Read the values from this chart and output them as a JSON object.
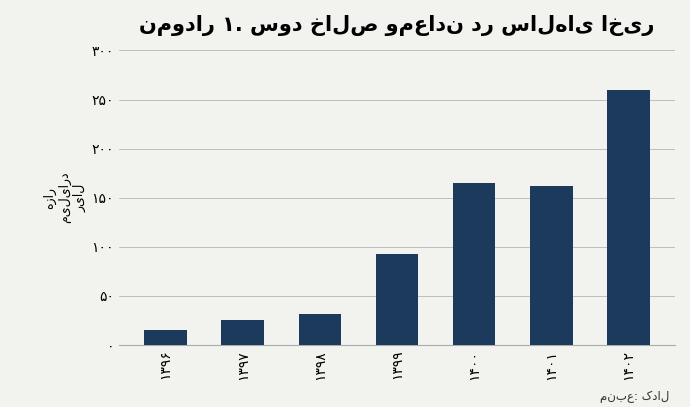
{
  "title": "نمودار ۱. سود خالص ومعادن در سال‌های اخیر",
  "ylabel_lines": [
    "هزار",
    "میلیارد",
    "ریال"
  ],
  "source": "منبع: کدال",
  "categories": [
    "۱۳۹۶",
    "۱۳۹۷",
    "۱۳۹۸",
    "۱۳۹۹",
    "۱۴۰۰",
    "۱۴۰۱",
    "۱۴۰۲"
  ],
  "values": [
    15,
    25,
    32,
    93,
    165,
    162,
    260
  ],
  "bar_color": "#1B3A5C",
  "ylim": [
    0,
    300
  ],
  "yticks": [
    0,
    50,
    100,
    150,
    200,
    250,
    300
  ],
  "ytick_labels": [
    "۰",
    "۵۰",
    "۱۰۰",
    "۱۵۰",
    "۲۰۰",
    "۲۵۰",
    "۳۰۰"
  ],
  "background_color": "#f2f2ee",
  "title_fontsize": 15,
  "tick_fontsize": 10,
  "ylabel_fontsize": 9
}
